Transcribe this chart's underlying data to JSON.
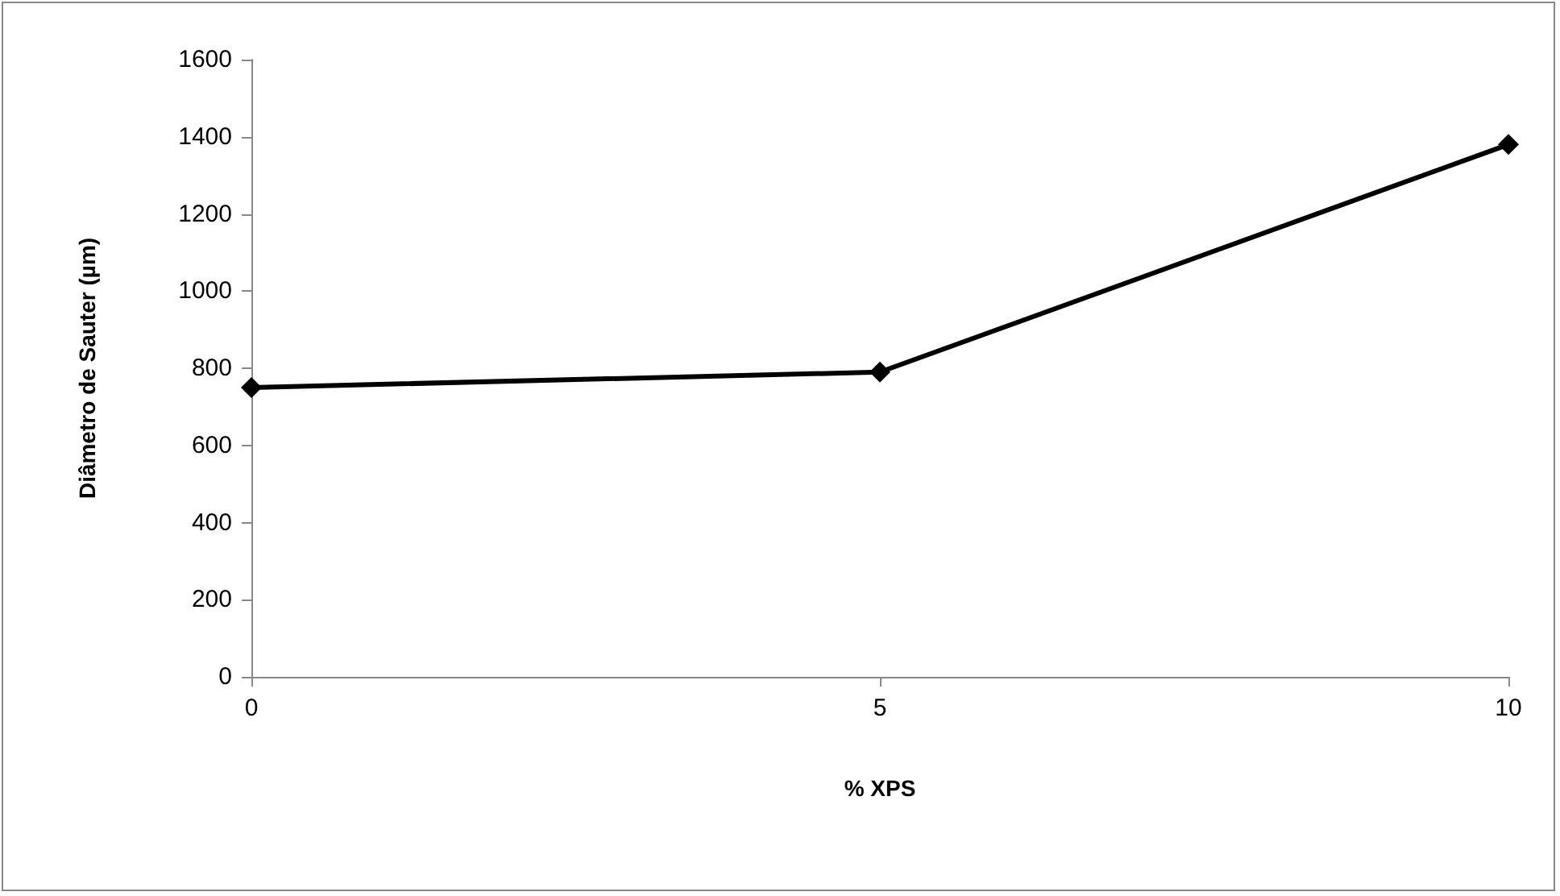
{
  "chart_data": {
    "type": "line",
    "xlabel": "% XPS",
    "ylabel": "Diâmetro de Sauter (µm)",
    "x": [
      0,
      5,
      10
    ],
    "series": [
      {
        "color": "#000000",
        "values": [
          750,
          790,
          1380
        ]
      }
    ],
    "xlim": [
      0,
      10
    ],
    "xticks": [
      0,
      5,
      10
    ],
    "ylim": [
      0,
      1600
    ],
    "yticks": [
      0,
      200,
      400,
      600,
      800,
      1000,
      1200,
      1400,
      1600
    ],
    "grid": false,
    "marker": "diamond",
    "line_style": "solid"
  }
}
